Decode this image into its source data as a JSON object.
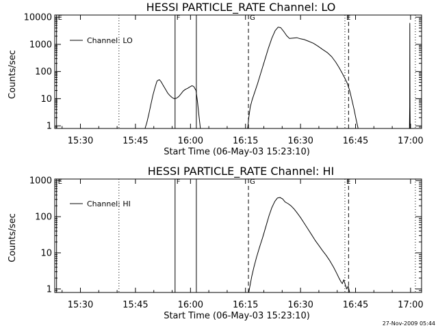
{
  "chart_data": [
    {
      "type": "line",
      "title": "HESSI PARTICLE_RATE Channel: LO",
      "xlabel": "Start Time (06-May-03 15:23:10)",
      "ylabel": "Counts/sec",
      "yscale": "log",
      "xlim_minutes_after_1523": [
        0,
        100
      ],
      "ylim": [
        0.8,
        12000
      ],
      "xticks": [
        {
          "t": 7,
          "label": "15:30"
        },
        {
          "t": 22,
          "label": "15:45"
        },
        {
          "t": 37,
          "label": "16:00"
        },
        {
          "t": 52,
          "label": "16:15"
        },
        {
          "t": 67,
          "label": "16:30"
        },
        {
          "t": 82,
          "label": "16:45"
        },
        {
          "t": 97,
          "label": "17:00"
        }
      ],
      "yticks": [
        {
          "v": 1,
          "label": "1"
        },
        {
          "v": 10,
          "label": "10"
        },
        {
          "v": 100,
          "label": "100"
        },
        {
          "v": 1000,
          "label": "1000"
        },
        {
          "v": 10000,
          "label": "10000"
        }
      ],
      "legend_entry": "Channel: LO",
      "legend_position": "top-left",
      "markers": [
        {
          "t": 0.5,
          "label": "E",
          "style": "solid"
        },
        {
          "t": 17.5,
          "label": "",
          "style": "dotted"
        },
        {
          "t": 32.8,
          "label": "F",
          "style": "solid"
        },
        {
          "t": 38.6,
          "label": "",
          "style": "solid"
        },
        {
          "t": 52.8,
          "label": "G",
          "style": "dashed"
        },
        {
          "t": 79.1,
          "label": "E",
          "style": "dotted"
        },
        {
          "t": 80.1,
          "label": "",
          "style": "dashed"
        },
        {
          "t": 98.3,
          "label": "",
          "style": "dotted"
        }
      ],
      "series": [
        {
          "segments": [
            [
              [
                24.6,
                0.8
              ],
              [
                25.1,
                1.3
              ],
              [
                25.6,
                2.5
              ],
              [
                26.2,
                6
              ],
              [
                26.8,
                14
              ],
              [
                27.4,
                28
              ],
              [
                27.9,
                45
              ],
              [
                28.5,
                50
              ],
              [
                29,
                42
              ],
              [
                29.6,
                30
              ],
              [
                30.2,
                22
              ],
              [
                30.8,
                16
              ],
              [
                31.4,
                13
              ],
              [
                32,
                11
              ],
              [
                32.6,
                10
              ],
              [
                33.2,
                10.5
              ],
              [
                33.8,
                12
              ],
              [
                34.4,
                15
              ],
              [
                35,
                19
              ],
              [
                35.6,
                22
              ],
              [
                36.2,
                24
              ],
              [
                36.8,
                27
              ],
              [
                37.4,
                30
              ],
              [
                37.9,
                28
              ],
              [
                38.5,
                20
              ],
              [
                38.9,
                8
              ],
              [
                39.3,
                2.5
              ],
              [
                39.7,
                0.8
              ]
            ],
            [
              [
                52.6,
                0.8
              ],
              [
                52.9,
                2
              ],
              [
                53.3,
                5
              ],
              [
                53.8,
                9
              ],
              [
                54.5,
                17
              ],
              [
                55.3,
                36
              ],
              [
                56.2,
                90
              ],
              [
                57.2,
                250
              ],
              [
                58.2,
                700
              ],
              [
                59.2,
                1700
              ],
              [
                60.1,
                3200
              ],
              [
                60.9,
                4300
              ],
              [
                61.6,
                4100
              ],
              [
                62.4,
                3000
              ],
              [
                63.2,
                2100
              ],
              [
                64,
                1650
              ],
              [
                65,
                1700
              ],
              [
                66,
                1750
              ],
              [
                67,
                1600
              ],
              [
                68,
                1500
              ],
              [
                69.2,
                1300
              ],
              [
                70.5,
                1100
              ],
              [
                71.8,
                850
              ],
              [
                73,
                650
              ],
              [
                74.3,
                500
              ],
              [
                75.5,
                350
              ],
              [
                76.6,
                220
              ],
              [
                77.5,
                140
              ],
              [
                78.3,
                90
              ],
              [
                79,
                60
              ],
              [
                79.7,
                38
              ],
              [
                80.4,
                20
              ],
              [
                81,
                9
              ],
              [
                81.6,
                4
              ],
              [
                82.2,
                1.6
              ],
              [
                82.7,
                0.8
              ]
            ],
            [
              [
                96.7,
                0.8
              ],
              [
                96.75,
                5
              ],
              [
                96.8,
                6000
              ],
              [
                96.85,
                5
              ],
              [
                96.9,
                0.8
              ]
            ]
          ]
        }
      ]
    },
    {
      "type": "line",
      "title": "HESSI PARTICLE_RATE Channel: HI",
      "xlabel": "Start Time (06-May-03 15:23:10)",
      "ylabel": "Counts/sec",
      "yscale": "log",
      "xlim_minutes_after_1523": [
        0,
        100
      ],
      "ylim": [
        0.8,
        1100
      ],
      "xticks": [
        {
          "t": 7,
          "label": "15:30"
        },
        {
          "t": 22,
          "label": "15:45"
        },
        {
          "t": 37,
          "label": "16:00"
        },
        {
          "t": 52,
          "label": "16:15"
        },
        {
          "t": 67,
          "label": "16:30"
        },
        {
          "t": 82,
          "label": "16:45"
        },
        {
          "t": 97,
          "label": "17:00"
        }
      ],
      "yticks": [
        {
          "v": 1,
          "label": "1"
        },
        {
          "v": 10,
          "label": "10"
        },
        {
          "v": 100,
          "label": "100"
        },
        {
          "v": 1000,
          "label": "1000"
        }
      ],
      "legend_entry": "Channel: HI",
      "legend_position": "top-left",
      "markers": [
        {
          "t": 0.5,
          "label": "E",
          "style": "solid"
        },
        {
          "t": 17.5,
          "label": "",
          "style": "dotted"
        },
        {
          "t": 32.8,
          "label": "F",
          "style": "solid"
        },
        {
          "t": 38.6,
          "label": "",
          "style": "solid"
        },
        {
          "t": 52.8,
          "label": "G",
          "style": "dashed"
        },
        {
          "t": 79.1,
          "label": "E",
          "style": "dotted"
        },
        {
          "t": 80.1,
          "label": "",
          "style": "dashed"
        },
        {
          "t": 98.3,
          "label": "",
          "style": "dotted"
        }
      ],
      "series": [
        {
          "segments": [
            [
              [
                52.9,
                0.8
              ],
              [
                53.2,
                1.2
              ],
              [
                53.7,
                2.2
              ],
              [
                54.3,
                4
              ],
              [
                55,
                7.5
              ],
              [
                55.8,
                14
              ],
              [
                56.7,
                27
              ],
              [
                57.6,
                55
              ],
              [
                58.4,
                105
              ],
              [
                59.2,
                180
              ],
              [
                60,
                265
              ],
              [
                60.7,
                330
              ],
              [
                61.4,
                340
              ],
              [
                62.1,
                310
              ],
              [
                62.8,
                255
              ],
              [
                63.6,
                230
              ],
              [
                64.4,
                200
              ],
              [
                65.2,
                165
              ],
              [
                66,
                130
              ],
              [
                67,
                95
              ],
              [
                68,
                66
              ],
              [
                69,
                46
              ],
              [
                70,
                32
              ],
              [
                71,
                22
              ],
              [
                72,
                16
              ],
              [
                73,
                11.5
              ],
              [
                74,
                8.5
              ],
              [
                75,
                6
              ],
              [
                76,
                4
              ],
              [
                76.8,
                2.8
              ],
              [
                77.5,
                2
              ],
              [
                78,
                1.6
              ],
              [
                78.4,
                1.4
              ],
              [
                78.8,
                1.8
              ],
              [
                79.2,
                1.3
              ],
              [
                79.6,
                1
              ],
              [
                80,
                1.2
              ],
              [
                80.4,
                0.8
              ]
            ]
          ]
        }
      ]
    }
  ],
  "footer": {
    "date_stamp": "27-Nov-2009 05:44"
  }
}
